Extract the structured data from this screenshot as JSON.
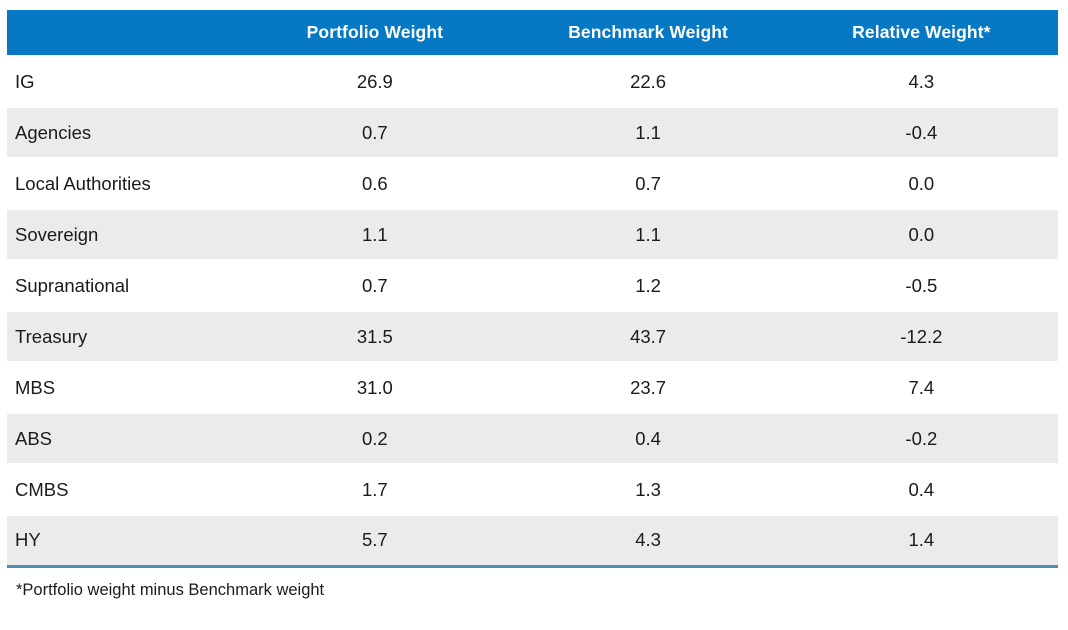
{
  "colors": {
    "header_bg": "#0778c3",
    "header_text": "#ffffff",
    "row_alt_bg": "#ebebeb",
    "row_bg": "#ffffff",
    "bottom_border": "#4f8db9",
    "text": "#1b1b1b"
  },
  "table": {
    "columns": [
      "",
      "Portfolio Weight",
      "Benchmark Weight",
      "Relative Weight*"
    ],
    "rows": [
      {
        "label": "IG",
        "portfolio_weight": "26.9",
        "benchmark_weight": "22.6",
        "relative_weight": "4.3"
      },
      {
        "label": "Agencies",
        "portfolio_weight": "0.7",
        "benchmark_weight": "1.1",
        "relative_weight": "-0.4"
      },
      {
        "label": "Local Authorities",
        "portfolio_weight": "0.6",
        "benchmark_weight": "0.7",
        "relative_weight": "0.0"
      },
      {
        "label": "Sovereign",
        "portfolio_weight": "1.1",
        "benchmark_weight": "1.1",
        "relative_weight": "0.0"
      },
      {
        "label": "Supranational",
        "portfolio_weight": "0.7",
        "benchmark_weight": "1.2",
        "relative_weight": "-0.5"
      },
      {
        "label": "Treasury",
        "portfolio_weight": "31.5",
        "benchmark_weight": "43.7",
        "relative_weight": "-12.2"
      },
      {
        "label": "MBS",
        "portfolio_weight": "31.0",
        "benchmark_weight": "23.7",
        "relative_weight": "7.4"
      },
      {
        "label": "ABS",
        "portfolio_weight": "0.2",
        "benchmark_weight": "0.4",
        "relative_weight": "-0.2"
      },
      {
        "label": "CMBS",
        "portfolio_weight": "1.7",
        "benchmark_weight": "1.3",
        "relative_weight": "0.4"
      },
      {
        "label": "HY",
        "portfolio_weight": "5.7",
        "benchmark_weight": "4.3",
        "relative_weight": "1.4"
      }
    ]
  },
  "footnote": "*Portfolio weight minus Benchmark weight"
}
